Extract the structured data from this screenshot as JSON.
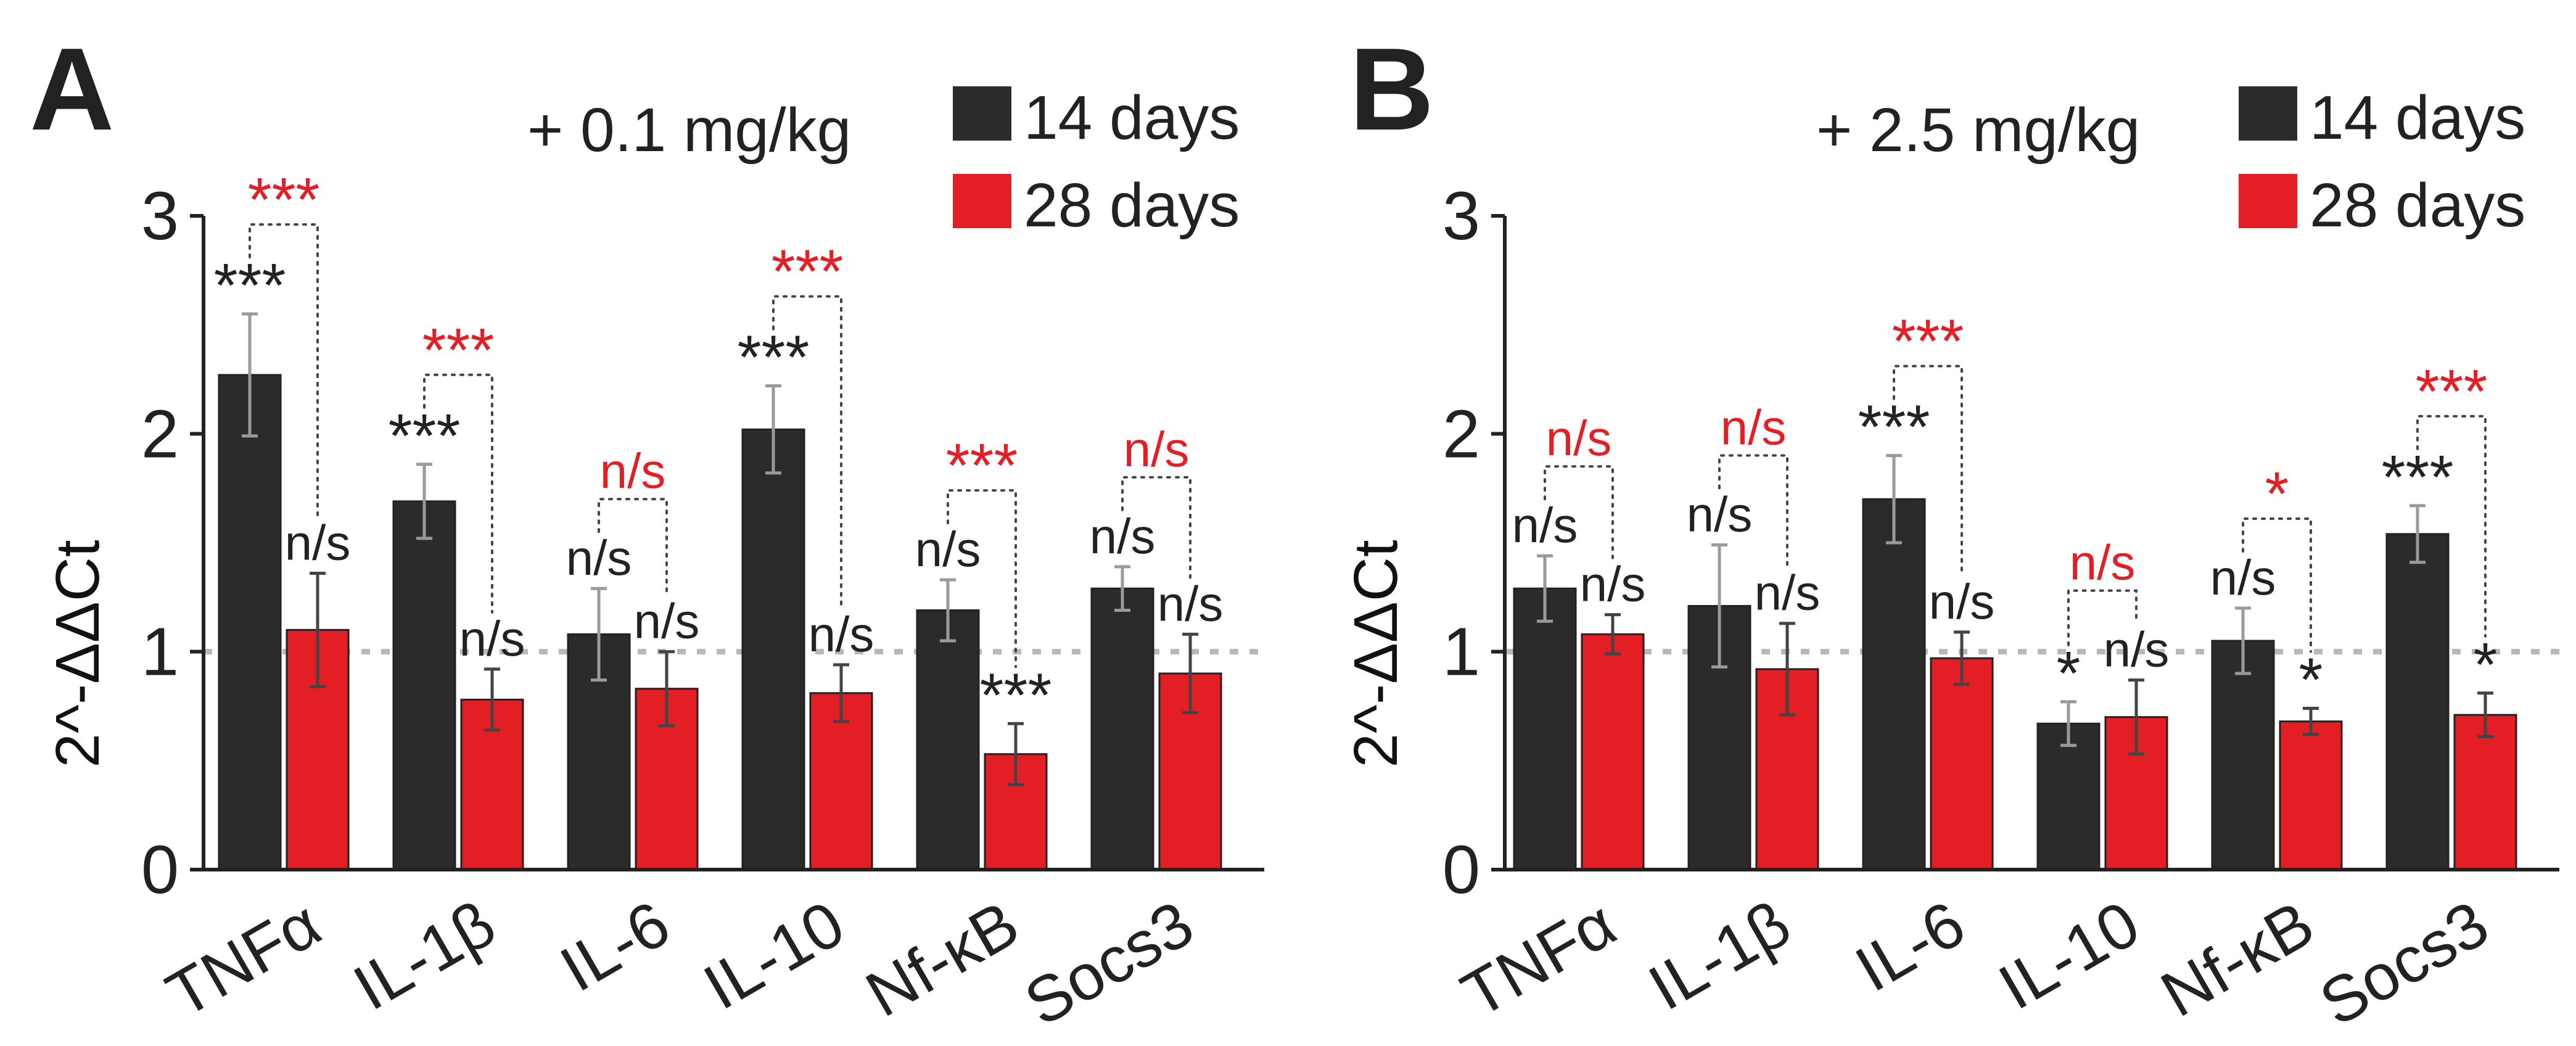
{
  "colors": {
    "series_14": "#2b2b2b",
    "series_28": "#e31e24",
    "text": "#222222",
    "reference_line": "#b8b8b8"
  },
  "chart_data": [
    {
      "type": "bar",
      "panel": "A",
      "dose_label": "+ 0.1 mg/kg",
      "ylabel": "2^-ΔΔCt",
      "ylim": [
        0,
        3
      ],
      "yticks": [
        "0",
        "1",
        "2",
        "3"
      ],
      "reference_line": 1,
      "legend": "top-right",
      "categories": [
        "TNFα",
        "IL-1β",
        "IL-6",
        "IL-10",
        "Nf-κB",
        "Socs3"
      ],
      "series": [
        {
          "name": "14 days",
          "color": "#2b2b2b",
          "values": [
            2.27,
            1.69,
            1.08,
            2.02,
            1.19,
            1.29
          ],
          "errors": [
            0.28,
            0.17,
            0.21,
            0.2,
            0.14,
            0.1
          ],
          "significance": [
            "***",
            "***",
            "n/s",
            "***",
            "n/s",
            "n/s"
          ]
        },
        {
          "name": "28 days",
          "color": "#e31e24",
          "values": [
            1.1,
            0.78,
            0.83,
            0.81,
            0.53,
            0.9
          ],
          "errors": [
            0.26,
            0.14,
            0.17,
            0.13,
            0.14,
            0.18
          ],
          "significance": [
            "n/s",
            "n/s",
            "n/s",
            "n/s",
            "***",
            "n/s"
          ]
        }
      ],
      "comparison": [
        "***",
        "***",
        "n/s",
        "***",
        "***",
        "n/s"
      ]
    },
    {
      "type": "bar",
      "panel": "B",
      "dose_label": "+ 2.5 mg/kg",
      "ylabel": "2^-ΔΔCt",
      "ylim": [
        0,
        3
      ],
      "yticks": [
        "0",
        "1",
        "2",
        "3"
      ],
      "reference_line": 1,
      "legend": "top-right",
      "categories": [
        "TNFα",
        "IL-1β",
        "IL-6",
        "IL-10",
        "Nf-κB",
        "Socs3"
      ],
      "series": [
        {
          "name": "14 days",
          "color": "#2b2b2b",
          "values": [
            1.29,
            1.21,
            1.7,
            0.67,
            1.05,
            1.54
          ],
          "errors": [
            0.15,
            0.28,
            0.2,
            0.1,
            0.15,
            0.13
          ],
          "significance": [
            "n/s",
            "n/s",
            "***",
            "*",
            "n/s",
            "***"
          ]
        },
        {
          "name": "28 days",
          "color": "#e31e24",
          "values": [
            1.08,
            0.92,
            0.97,
            0.7,
            0.68,
            0.71
          ],
          "errors": [
            0.09,
            0.21,
            0.12,
            0.17,
            0.06,
            0.1
          ],
          "significance": [
            "n/s",
            "n/s",
            "n/s",
            "n/s",
            "*",
            "*"
          ]
        }
      ],
      "comparison": [
        "n/s",
        "n/s",
        "***",
        "n/s",
        "*",
        "***"
      ]
    }
  ]
}
